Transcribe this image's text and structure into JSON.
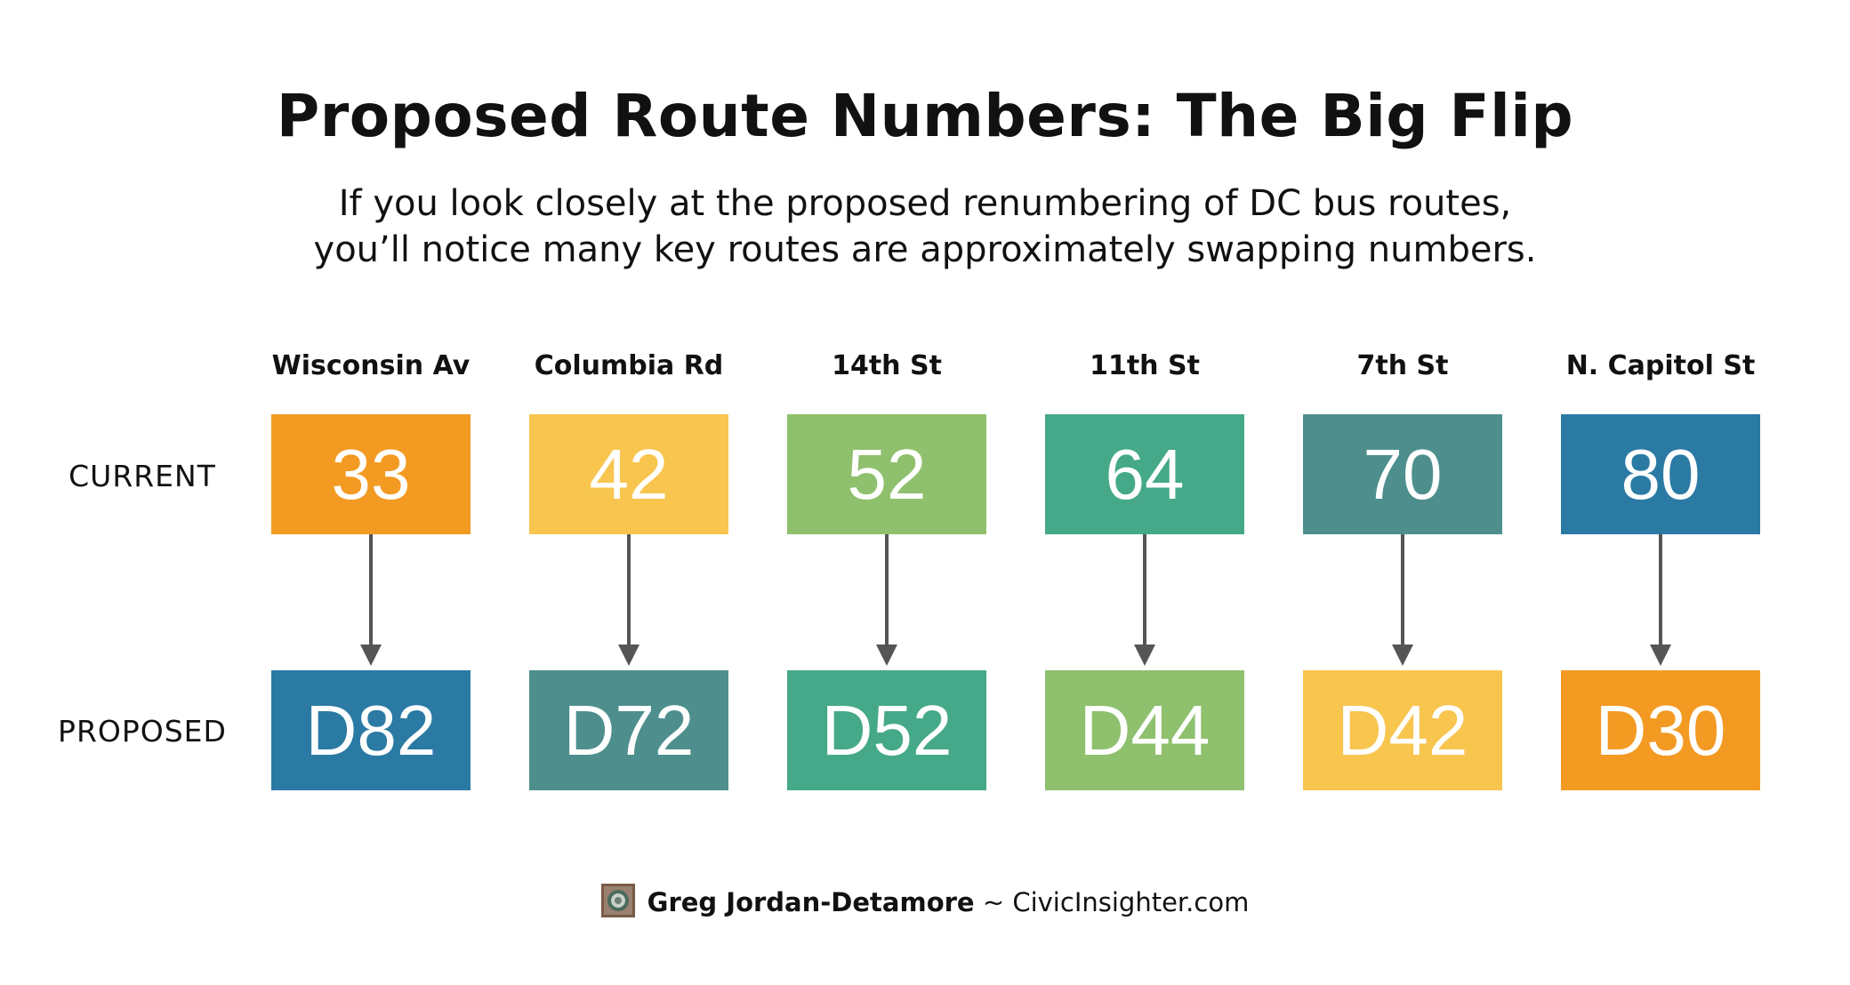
{
  "title": "Proposed Route Numbers: The Big Flip",
  "subtitle": {
    "line1": "If you look closely at the proposed renumbering of DC bus routes,",
    "line2": "you’ll notice many key routes are approximately swapping numbers."
  },
  "row_labels": {
    "current": "CURRENT",
    "proposed": "PROPOSED"
  },
  "routes": [
    {
      "name": "Wisconsin Av",
      "current": "33",
      "proposed": "D82",
      "current_color": "#F39A23",
      "proposed_color": "#2A7AA4"
    },
    {
      "name": "Columbia Rd",
      "current": "42",
      "proposed": "D72",
      "current_color": "#F8C54F",
      "proposed_color": "#4E8F8D"
    },
    {
      "name": "14th St",
      "current": "52",
      "proposed": "D52",
      "current_color": "#8FC06D",
      "proposed_color": "#45A989"
    },
    {
      "name": "11th St",
      "current": "64",
      "proposed": "D44",
      "current_color": "#45A989",
      "proposed_color": "#8FC06D"
    },
    {
      "name": "7th St",
      "current": "70",
      "proposed": "D42",
      "current_color": "#4E8F8D",
      "proposed_color": "#F8C54F"
    },
    {
      "name": "N. Capitol St",
      "current": "80",
      "proposed": "D30",
      "current_color": "#2A7AA4",
      "proposed_color": "#F39A23"
    }
  ],
  "credit": {
    "author": "Greg Jordan-Detamore",
    "separator": "~",
    "site": "CivicInsighter.com",
    "logo_icon": "civic-insighter-logo-icon"
  }
}
